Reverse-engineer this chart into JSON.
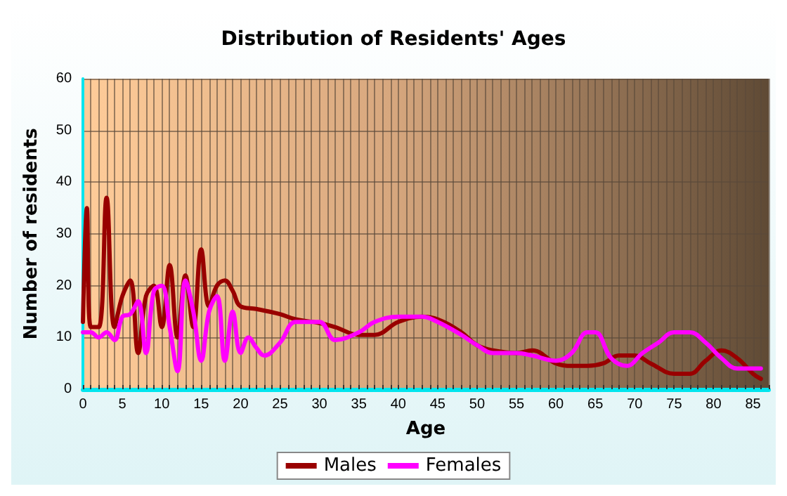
{
  "chart_data": {
    "type": "line",
    "title": "Distribution of Residents' Ages",
    "xlabel": "Age",
    "ylabel": "Number of residents",
    "xlim": [
      0,
      87
    ],
    "xticks": [
      0,
      5,
      10,
      15,
      20,
      25,
      30,
      35,
      40,
      45,
      50,
      55,
      60,
      65,
      70,
      75,
      80,
      85
    ],
    "ylim": [
      0,
      60
    ],
    "yticks": [
      0,
      10,
      20,
      30,
      40,
      50,
      60
    ],
    "grid": true,
    "legend": "bottom",
    "marker": "none",
    "line_style": "solid",
    "series": [
      {
        "name": "Males",
        "color": "#990000",
        "x": [
          0,
          0.5,
          1,
          2,
          3,
          4,
          5,
          6,
          7,
          8,
          9,
          10,
          11,
          12,
          13,
          14,
          15,
          16,
          17,
          18,
          19,
          20,
          22,
          25,
          27,
          30,
          32,
          35,
          37,
          40,
          43,
          45,
          48,
          50,
          52,
          55,
          57,
          60,
          62,
          64,
          66,
          68,
          70,
          72,
          75,
          77,
          79,
          81,
          83,
          85,
          86
        ],
        "values": [
          13,
          35,
          12,
          12,
          37,
          12,
          18,
          21,
          7,
          18,
          20,
          12,
          24,
          10,
          22,
          12,
          27,
          16,
          20,
          21,
          19,
          16,
          15.5,
          14.5,
          13.5,
          12.8,
          12,
          10.5,
          10.5,
          13,
          14,
          13.5,
          11,
          8.5,
          7.5,
          7,
          7.5,
          5,
          4.5,
          4.5,
          5,
          6.5,
          6.5,
          5,
          3,
          3,
          5.5,
          7.5,
          6,
          3,
          2
        ]
      },
      {
        "name": "Females",
        "color": "#ff00ff",
        "x": [
          0,
          1,
          2,
          3,
          4,
          5,
          6,
          7,
          8,
          9,
          10,
          11,
          12,
          13,
          14,
          15,
          16,
          17,
          18,
          19,
          20,
          21,
          22,
          23,
          25,
          27,
          30,
          32,
          35,
          37,
          40,
          43,
          45,
          48,
          50,
          52,
          55,
          57,
          60,
          62,
          64,
          65,
          67,
          69,
          71,
          73,
          75,
          77,
          79,
          81,
          83,
          86
        ],
        "values": [
          11,
          11,
          10,
          11,
          9.5,
          14,
          14.5,
          17,
          7,
          19,
          20,
          12,
          3.5,
          21,
          15,
          5.5,
          15,
          18,
          5.5,
          15,
          7,
          10,
          8,
          6.5,
          9,
          13,
          13,
          9.5,
          11,
          13,
          14,
          14,
          13,
          10.5,
          8.5,
          7,
          7,
          6.5,
          5.5,
          7,
          11,
          11,
          6,
          4.5,
          7,
          9,
          11,
          11,
          9,
          6,
          4,
          4
        ]
      }
    ]
  }
}
